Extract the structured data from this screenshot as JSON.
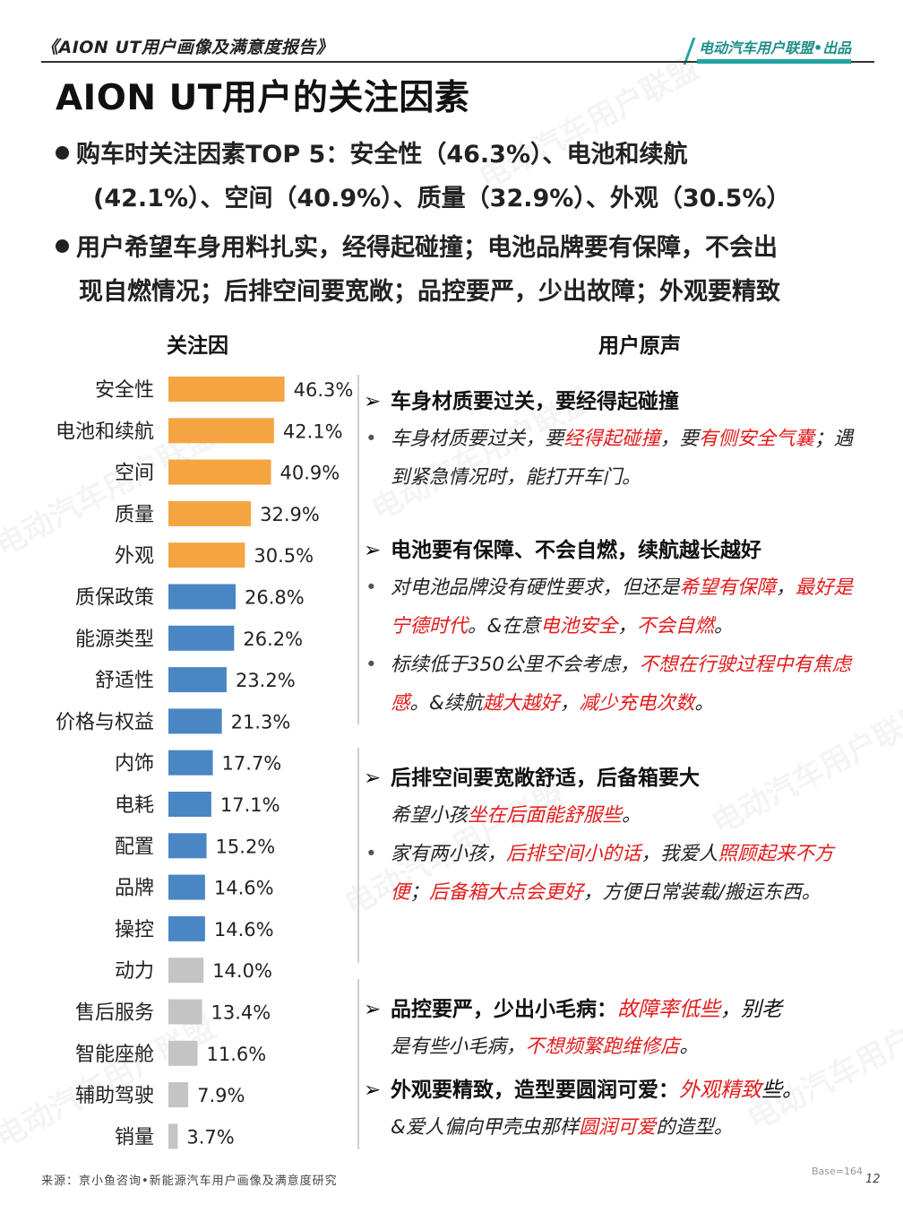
{
  "header": {
    "report_title": "《AION UT用户画像及满意度报告》",
    "brand": "电动汽车用户联盟•出品"
  },
  "page_title": "AION UT用户的关注因素",
  "bullets": [
    {
      "lines": [
        "购车时关注因素TOP 5：安全性（46.3%）、电池和续航",
        "(42.1%）、空间（40.9%）、质量（32.9%）、外观（30.5%）"
      ]
    },
    {
      "lines": [
        "用户希望车身用料扎实，经得起碰撞；电池品牌要有保障，不会出",
        "现自燃情况；后排空间要宽敞；品控要严，少出故障；外观要精致"
      ]
    }
  ],
  "columns": {
    "left": "关注因",
    "right": "用户原声"
  },
  "chart_data": {
    "type": "bar",
    "orientation": "horizontal",
    "categories": [
      "安全性",
      "电池和续航",
      "空间",
      "质量",
      "外观",
      "质保政策",
      "能源类型",
      "舒适性",
      "价格与权益",
      "内饰",
      "电耗",
      "配置",
      "品牌",
      "操控",
      "动力",
      "售后服务",
      "智能座舱",
      "辅助驾驶",
      "销量"
    ],
    "values": [
      46.3,
      42.1,
      40.9,
      32.9,
      30.5,
      26.8,
      26.2,
      23.2,
      21.3,
      17.7,
      17.1,
      15.2,
      14.6,
      14.6,
      14.0,
      13.4,
      11.6,
      7.9,
      3.7
    ],
    "value_labels": [
      "46.3%",
      "42.1%",
      "40.9%",
      "32.9%",
      "30.5%",
      "26.8%",
      "26.2%",
      "23.2%",
      "21.3%",
      "17.7%",
      "17.1%",
      "15.2%",
      "14.6%",
      "14.6%",
      "14.0%",
      "13.4%",
      "11.6%",
      "7.9%",
      "3.7%"
    ],
    "colors": [
      "#f4a541",
      "#f4a541",
      "#f4a541",
      "#f4a541",
      "#f4a541",
      "#4a86c3",
      "#4a86c3",
      "#4a86c3",
      "#4a86c3",
      "#4a86c3",
      "#4a86c3",
      "#4a86c3",
      "#4a86c3",
      "#4a86c3",
      "#c4c4c4",
      "#c4c4c4",
      "#c4c4c4",
      "#c4c4c4",
      "#c4c4c4"
    ],
    "xlim": [
      0,
      50
    ],
    "grid": false,
    "legend": "none"
  },
  "quotes": [
    {
      "head": [
        {
          "t": "车身材质要过关，要经得起碰撞"
        }
      ],
      "items": [
        {
          "bullet": true,
          "parts": [
            {
              "t": "车身材质要过关，要"
            },
            {
              "t": "经得起碰撞",
              "red": true
            },
            {
              "t": "，要"
            },
            {
              "t": "有侧安全气囊",
              "red": true
            },
            {
              "t": "；遇到紧急情况时，能打开车门。"
            }
          ]
        }
      ]
    },
    {
      "head": [
        {
          "t": "电池要有保障、不会自燃，续航越长越好"
        }
      ],
      "items": [
        {
          "bullet": true,
          "parts": [
            {
              "t": "对电池品牌没有硬性要求，但还是"
            },
            {
              "t": "希望有保障",
              "red": true
            },
            {
              "t": "，"
            },
            {
              "t": "最好是宁德时代",
              "red": true
            },
            {
              "t": "。&在意"
            },
            {
              "t": "电池安全",
              "red": true
            },
            {
              "t": "，"
            },
            {
              "t": "不会自燃",
              "red": true
            },
            {
              "t": "。"
            }
          ]
        },
        {
          "bullet": true,
          "parts": [
            {
              "t": "标续低于350公里不会考虑，"
            },
            {
              "t": "不想在行驶过程中有焦虑感",
              "red": true
            },
            {
              "t": "。&续航"
            },
            {
              "t": "越大越好",
              "red": true
            },
            {
              "t": "，"
            },
            {
              "t": "减少充电次数",
              "red": true
            },
            {
              "t": "。"
            }
          ]
        }
      ]
    },
    {
      "head": [
        {
          "t": "后排空间要宽敞舒适，后备箱要大"
        }
      ],
      "items": [
        {
          "bullet": false,
          "parts": [
            {
              "t": "希望小孩"
            },
            {
              "t": "坐在后面能舒服些",
              "red": true
            },
            {
              "t": "。"
            }
          ]
        },
        {
          "bullet": true,
          "parts": [
            {
              "t": "家有两小孩，"
            },
            {
              "t": "后排空间小的话",
              "red": true
            },
            {
              "t": "，我爱人"
            },
            {
              "t": "照顾起来不方便",
              "red": true
            },
            {
              "t": "；"
            },
            {
              "t": "后备箱大点会更好",
              "red": true
            },
            {
              "t": "，方便日常装载/搬运东西。"
            }
          ]
        }
      ]
    },
    {
      "head": [
        {
          "t": "品控要严，少出小毛病："
        },
        {
          "t": "故障率低些",
          "red": true,
          "italic": true
        },
        {
          "t": "，别老",
          "italic": true
        }
      ],
      "items": [
        {
          "bullet": false,
          "parts": [
            {
              "t": "是有些小毛病，"
            },
            {
              "t": "不想频繁跑维修店",
              "red": true
            },
            {
              "t": "。"
            }
          ]
        }
      ]
    },
    {
      "head": [
        {
          "t": "外观要精致，造型要圆润可爱："
        },
        {
          "t": "外观精致",
          "red": true,
          "italic": true
        },
        {
          "t": "些。",
          "italic": true
        }
      ],
      "items": [
        {
          "bullet": false,
          "parts": [
            {
              "t": "&爱人偏向甲壳虫那样"
            },
            {
              "t": "圆润可爱",
              "red": true
            },
            {
              "t": "的造型。"
            }
          ]
        }
      ]
    }
  ],
  "footer": {
    "source": "来源：亰小鱼咨询•新能源汽车用户画像及满意度研究",
    "base": "Base=164",
    "page_number": "12"
  },
  "watermark": "电动汽车用户联盟"
}
